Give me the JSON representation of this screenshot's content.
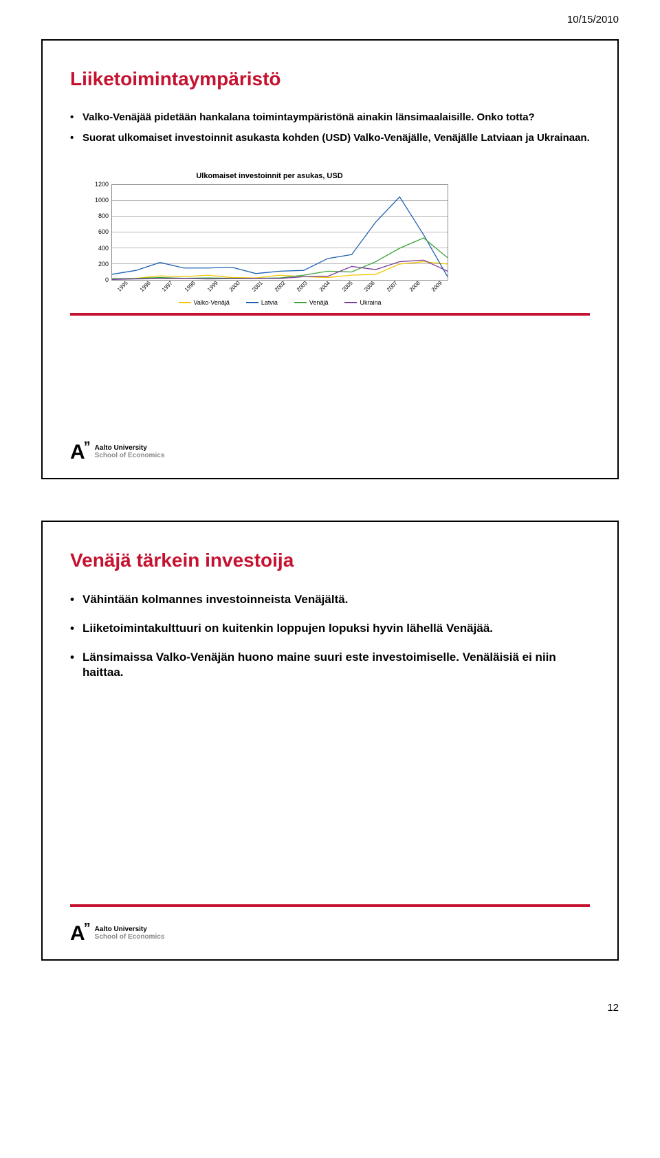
{
  "header_date": "10/15/2010",
  "page_number": "12",
  "logo": {
    "name1": "Aalto University",
    "name2": "School of Economics"
  },
  "slide1": {
    "title": "Liiketoimintaympäristö",
    "title_color": "#c51230",
    "bullets": [
      "Valko-Venäjää pidetään hankalana toimintaympäristönä ainakin länsimaalaisille. Onko totta?",
      "Suorat ulkomaiset investoinnit asukasta kohden (USD) Valko-Venäjälle, Venäjälle Latviaan ja Ukrainaan."
    ],
    "chart": {
      "type": "line",
      "title": "Ulkomaiset investoinnit per asukas, USD",
      "title_fontsize": 11,
      "ylim": [
        0,
        1200
      ],
      "ytick_step": 200,
      "yticks": [
        "1200",
        "1000",
        "800",
        "600",
        "400",
        "200",
        "0"
      ],
      "background_color": "#ffffff",
      "grid_color": "#bbbbbb",
      "categories": [
        "1995",
        "1996",
        "1997",
        "1998",
        "1999",
        "2000",
        "2001",
        "2002",
        "2003",
        "2004",
        "2005",
        "2006",
        "2007",
        "2008",
        "2009"
      ],
      "series": [
        {
          "name": "Valko-Venäjä",
          "color": "#f2c500",
          "values": [
            10,
            20,
            50,
            40,
            60,
            30,
            25,
            60,
            40,
            30,
            60,
            70,
            200,
            230,
            200
          ]
        },
        {
          "name": "Latvia",
          "color": "#1d5fb0",
          "values": [
            70,
            120,
            220,
            150,
            150,
            160,
            80,
            110,
            120,
            270,
            320,
            730,
            1050,
            570,
            40
          ]
        },
        {
          "name": "Venäjä",
          "color": "#3aa33a",
          "values": [
            15,
            18,
            30,
            20,
            25,
            20,
            20,
            25,
            60,
            110,
            100,
            230,
            400,
            530,
            280
          ]
        },
        {
          "name": "Ukraina",
          "color": "#7a3c9a",
          "values": [
            6,
            12,
            15,
            18,
            12,
            15,
            18,
            18,
            40,
            45,
            170,
            130,
            230,
            250,
            110
          ]
        }
      ]
    }
  },
  "slide2": {
    "title": "Venäjä tärkein investoija",
    "title_color": "#c51230",
    "bullets": [
      "Vähintään kolmannes investoinneista Venäjältä.",
      "Liiketoimintakulttuuri on kuitenkin loppujen lopuksi hyvin lähellä Venäjää.",
      "Länsimaissa Valko-Venäjän huono maine suuri este investoimiselle. Venäläisiä ei niin haittaa."
    ]
  },
  "accent_color": "#c51230"
}
